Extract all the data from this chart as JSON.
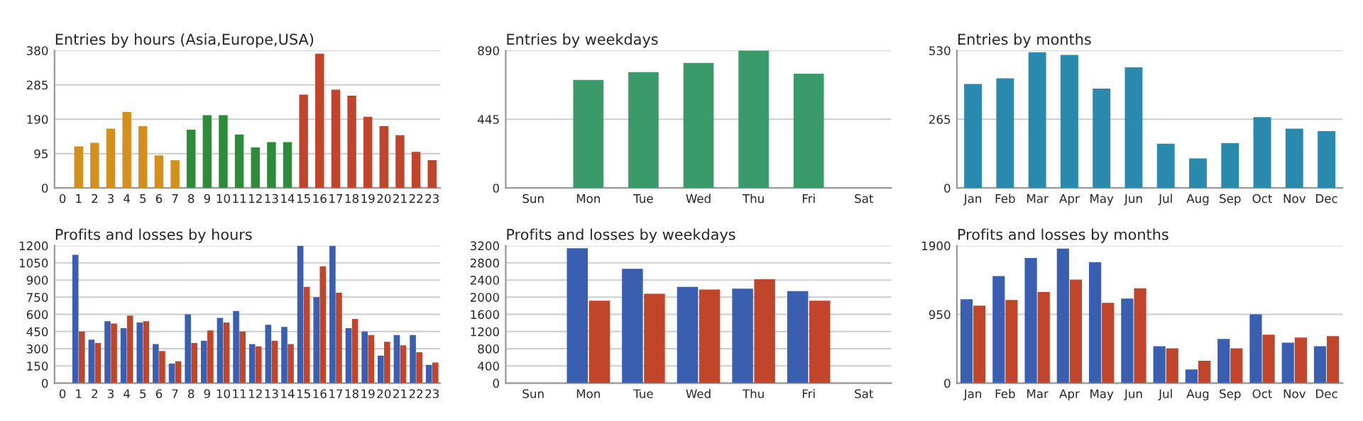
{
  "chart_data": [
    {
      "type": "bar",
      "title": "Entries by hours (Asia,Europe,USA)",
      "categories": [
        "0",
        "1",
        "2",
        "3",
        "4",
        "5",
        "6",
        "7",
        "8",
        "9",
        "10",
        "11",
        "12",
        "13",
        "14",
        "15",
        "16",
        "17",
        "18",
        "19",
        "20",
        "21",
        "22",
        "23"
      ],
      "values": [
        null,
        115,
        125,
        164,
        210,
        171,
        90,
        77,
        161,
        201,
        201,
        148,
        112,
        127,
        127,
        258,
        371,
        272,
        255,
        197,
        171,
        146,
        100,
        77
      ],
      "colors": [
        "#d4901c",
        "#d4901c",
        "#d4901c",
        "#d4901c",
        "#d4901c",
        "#d4901c",
        "#d4901c",
        "#d4901c",
        "#2e8b3a",
        "#2e8b3a",
        "#2e8b3a",
        "#2e8b3a",
        "#2e8b3a",
        "#2e8b3a",
        "#2e8b3a",
        "#c0452a",
        "#c0452a",
        "#c0452a",
        "#c0452a",
        "#c0452a",
        "#c0452a",
        "#c0452a",
        "#c0452a",
        "#c0452a"
      ],
      "ylim": [
        0,
        380
      ],
      "yticks": [
        0,
        95,
        190,
        285,
        380
      ],
      "grid": "y"
    },
    {
      "type": "bar",
      "title": "Entries by weekdays",
      "categories": [
        "Sun",
        "Mon",
        "Tue",
        "Wed",
        "Thu",
        "Fri",
        "Sat"
      ],
      "values": [
        null,
        700,
        750,
        810,
        890,
        740,
        null
      ],
      "color": "#3a9a6a",
      "ylim": [
        0,
        890
      ],
      "yticks": [
        0,
        445,
        890
      ],
      "grid": "y"
    },
    {
      "type": "bar",
      "title": "Entries by months",
      "categories": [
        "Jan",
        "Feb",
        "Mar",
        "Apr",
        "May",
        "Jun",
        "Jul",
        "Aug",
        "Sep",
        "Oct",
        "Nov",
        "Dec"
      ],
      "values": [
        401,
        423,
        523,
        513,
        383,
        465,
        171,
        114,
        173,
        273,
        229,
        219
      ],
      "color": "#2a8aad",
      "ylim": [
        0,
        530
      ],
      "yticks": [
        0,
        265,
        530
      ],
      "grid": "y"
    },
    {
      "type": "bar",
      "title": "Profits and losses by hours",
      "categories": [
        "0",
        "1",
        "2",
        "3",
        "4",
        "5",
        "6",
        "7",
        "8",
        "9",
        "10",
        "11",
        "12",
        "13",
        "14",
        "15",
        "16",
        "17",
        "18",
        "19",
        "20",
        "21",
        "22",
        "23"
      ],
      "series": [
        {
          "color": "#3a5fb0",
          "values": [
            null,
            1120,
            380,
            540,
            480,
            530,
            340,
            170,
            600,
            370,
            570,
            630,
            340,
            510,
            490,
            1200,
            750,
            1200,
            480,
            450,
            240,
            420,
            420,
            160
          ]
        },
        {
          "color": "#c0452a",
          "values": [
            null,
            450,
            350,
            520,
            590,
            540,
            280,
            190,
            350,
            460,
            530,
            450,
            320,
            370,
            340,
            840,
            1020,
            790,
            560,
            420,
            360,
            330,
            270,
            180
          ]
        }
      ],
      "ylim": [
        0,
        1200
      ],
      "yticks": [
        0,
        150,
        300,
        450,
        600,
        750,
        900,
        1050,
        1200
      ],
      "grid": "y"
    },
    {
      "type": "bar",
      "title": "Profits and losses by weekdays",
      "categories": [
        "Sun",
        "Mon",
        "Tue",
        "Wed",
        "Thu",
        "Fri",
        "Sat"
      ],
      "series": [
        {
          "color": "#3a5fb0",
          "values": [
            null,
            3140,
            2660,
            2240,
            2200,
            2140,
            null
          ]
        },
        {
          "color": "#c0452a",
          "values": [
            null,
            1920,
            2080,
            2180,
            2420,
            1920,
            null
          ]
        }
      ],
      "ylim": [
        0,
        3200
      ],
      "yticks": [
        0,
        400,
        800,
        1200,
        1600,
        2000,
        2400,
        2800,
        3200
      ],
      "grid": "y"
    },
    {
      "type": "bar",
      "title": "Profits and losses by months",
      "categories": [
        "Jan",
        "Feb",
        "Mar",
        "Apr",
        "May",
        "Jun",
        "Jul",
        "Aug",
        "Sep",
        "Oct",
        "Nov",
        "Dec"
      ],
      "series": [
        {
          "color": "#3a5fb0",
          "values": [
            1160,
            1480,
            1730,
            1860,
            1670,
            1170,
            510,
            190,
            610,
            950,
            560,
            510
          ]
        },
        {
          "color": "#c0452a",
          "values": [
            1070,
            1150,
            1260,
            1430,
            1110,
            1310,
            480,
            310,
            480,
            670,
            630,
            650
          ]
        }
      ],
      "ylim": [
        0,
        1900
      ],
      "yticks": [
        0,
        950,
        1900
      ],
      "grid": "y"
    }
  ]
}
